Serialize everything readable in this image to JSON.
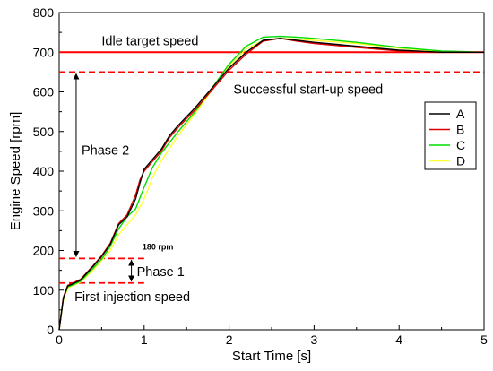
{
  "chart_data": {
    "type": "line",
    "xlabel": "Start Time [s]",
    "ylabel": "Engine Speed [rpm]",
    "xlim": [
      0,
      5
    ],
    "ylim": [
      0,
      800
    ],
    "x_ticks": [
      0,
      1,
      2,
      3,
      4,
      5
    ],
    "y_ticks": [
      0,
      100,
      200,
      300,
      400,
      500,
      600,
      700,
      800
    ],
    "grid": false,
    "legend_position": "right",
    "series": [
      {
        "name": "A",
        "color": "#000000",
        "x": [
          0,
          0.05,
          0.1,
          0.15,
          0.25,
          0.4,
          0.5,
          0.6,
          0.7,
          0.8,
          0.9,
          0.95,
          1.0,
          1.1,
          1.2,
          1.3,
          1.4,
          1.6,
          1.8,
          2.0,
          2.2,
          2.4,
          2.6,
          2.8,
          3.0,
          3.5,
          4.0,
          4.5,
          5.0
        ],
        "y": [
          0,
          80,
          110,
          115,
          125,
          160,
          185,
          215,
          265,
          285,
          330,
          370,
          405,
          430,
          455,
          490,
          515,
          560,
          610,
          660,
          700,
          730,
          735,
          730,
          725,
          715,
          705,
          700,
          700
        ]
      },
      {
        "name": "B",
        "color": "#e00000",
        "x": [
          0,
          0.05,
          0.1,
          0.15,
          0.25,
          0.4,
          0.5,
          0.6,
          0.7,
          0.8,
          0.9,
          0.95,
          1.0,
          1.1,
          1.2,
          1.3,
          1.4,
          1.6,
          1.8,
          2.0,
          2.2,
          2.4,
          2.6,
          2.8,
          3.0,
          3.5,
          4.0,
          4.5,
          5.0
        ],
        "y": [
          0,
          82,
          112,
          117,
          127,
          162,
          187,
          218,
          268,
          290,
          340,
          378,
          400,
          425,
          450,
          485,
          510,
          555,
          605,
          655,
          695,
          728,
          735,
          728,
          722,
          712,
          703,
          700,
          700
        ]
      },
      {
        "name": "C",
        "color": "#00dd00",
        "x": [
          0,
          0.05,
          0.1,
          0.15,
          0.25,
          0.4,
          0.5,
          0.6,
          0.7,
          0.8,
          0.9,
          1.0,
          1.1,
          1.2,
          1.4,
          1.6,
          1.8,
          2.0,
          2.2,
          2.4,
          2.6,
          2.8,
          3.0,
          3.5,
          4.0,
          4.5,
          5.0
        ],
        "y": [
          0,
          78,
          108,
          112,
          122,
          155,
          178,
          210,
          255,
          285,
          305,
          360,
          410,
          445,
          500,
          550,
          610,
          670,
          715,
          738,
          740,
          738,
          735,
          725,
          712,
          703,
          700
        ]
      },
      {
        "name": "D",
        "color": "#ffff33",
        "x": [
          0,
          0.05,
          0.1,
          0.15,
          0.25,
          0.4,
          0.5,
          0.6,
          0.7,
          0.8,
          0.9,
          1.0,
          1.1,
          1.2,
          1.4,
          1.6,
          1.8,
          2.0,
          2.2,
          2.4,
          2.6,
          2.8,
          3.0,
          3.5,
          4.0,
          4.5,
          5.0
        ],
        "y": [
          0,
          75,
          105,
          110,
          120,
          150,
          175,
          200,
          240,
          265,
          290,
          330,
          385,
          425,
          490,
          545,
          605,
          665,
          708,
          730,
          735,
          733,
          730,
          722,
          710,
          702,
          700
        ]
      }
    ],
    "reference_lines": [
      {
        "label": "Idle target speed",
        "y": 700,
        "style": "solid",
        "color": "#ff0000"
      },
      {
        "label": "Successful start-up speed",
        "y": 650,
        "style": "dashed",
        "color": "#ff0000"
      },
      {
        "label": "180 rpm",
        "y": 180,
        "x_end": 1.0,
        "style": "dashed",
        "color": "#ff0000"
      },
      {
        "label": "First injection speed",
        "y": 118,
        "x_end": 1.0,
        "style": "dashed",
        "color": "#ff0000"
      }
    ],
    "phases": [
      {
        "label": "Phase 2",
        "x": 0.2,
        "from": 180,
        "to": 650
      },
      {
        "label": "Phase 1",
        "x": 0.85,
        "from": 118,
        "to": 180
      }
    ],
    "legend": [
      "A",
      "B",
      "C",
      "D"
    ]
  }
}
